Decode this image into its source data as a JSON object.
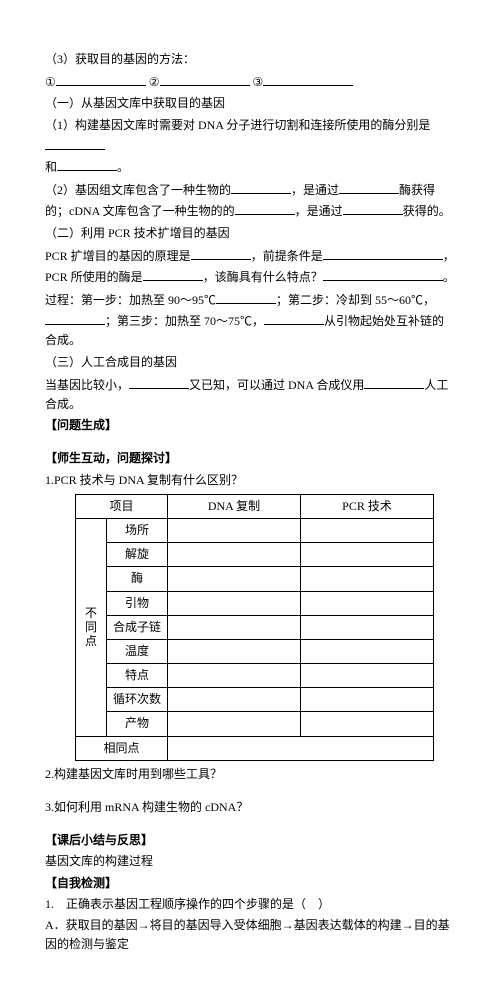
{
  "q3_title": "（3）获取目的基因的方法：",
  "num1": "①",
  "num2": "②",
  "num3": "③",
  "s1_title": "（一）从基因文库中获取目的基因",
  "s1_l1a": "（1）构建基因文库时需要对 DNA 分子进行切割和连接所使用的酶分别是",
  "s1_l1b": "和",
  "s1_l1c": "。",
  "s1_l2a": "（2）基因组文库包含了一种生物的",
  "s1_l2b": "，是通过",
  "s1_l2c": "酶获得的；cDNA 文库包含了一种生物的的",
  "s1_l2d": "，是通过",
  "s1_l2e": "获得的。",
  "s2_title": "（二）利用 PCR 技术扩增目的基因",
  "s2_l1a": "PCR 扩增目的基因的原理是",
  "s2_l1b": "，前提条件是",
  "s2_l1c": "，PCR 所使用的酶是",
  "s2_l1d": "，该酶具有什么特点？",
  "s2_l1e": "。",
  "s2_l2a": "过程：第一步：加热至 90～95℃",
  "s2_l2b": "；第二步：冷却到 55～60℃，",
  "s2_l2c": "；第三步：加热至 70～75℃，",
  "s2_l2d": "从引物起始处互补链的合成。",
  "s3_title": "（三）人工合成目的基因",
  "s3_l1a": "当基因比较小，",
  "s3_l1b": "又已知，可以通过 DNA 合成仪用",
  "s3_l1c": "人工合成。",
  "gen_title": "【问题生成】",
  "inter_title": "【师生互动，问题探讨】",
  "q1": "1.PCR 技术与 DNA 复制有什么区别？",
  "th1": "项目",
  "th2": "DNA 复制",
  "th3": "PCR 技术",
  "vcat": "不同点",
  "r1": "场所",
  "r2": "解旋",
  "r3": "酶",
  "r4": "引物",
  "r5": "合成子链",
  "r6": "温度",
  "r7": "特点",
  "r8": "循环次数",
  "r9": "产物",
  "rsame": "相同点",
  "q2": "2.构建基因文库时用到哪些工具？",
  "q3_mrna": "3.如何利用 mRNA 构建生物的 cDNA？",
  "sum_title": "【课后小结与反思】",
  "sum_line": "基因文库的构建过程",
  "self_title": "【自我检测】",
  "mc1a": "1.　正确表示基因工程顺序操作的四个步骤的是（　）",
  "mc1b": "A．获取目的基因→将目的基因导入受体细胞→基因表达载体的构建→目的基因的检测与鉴定"
}
